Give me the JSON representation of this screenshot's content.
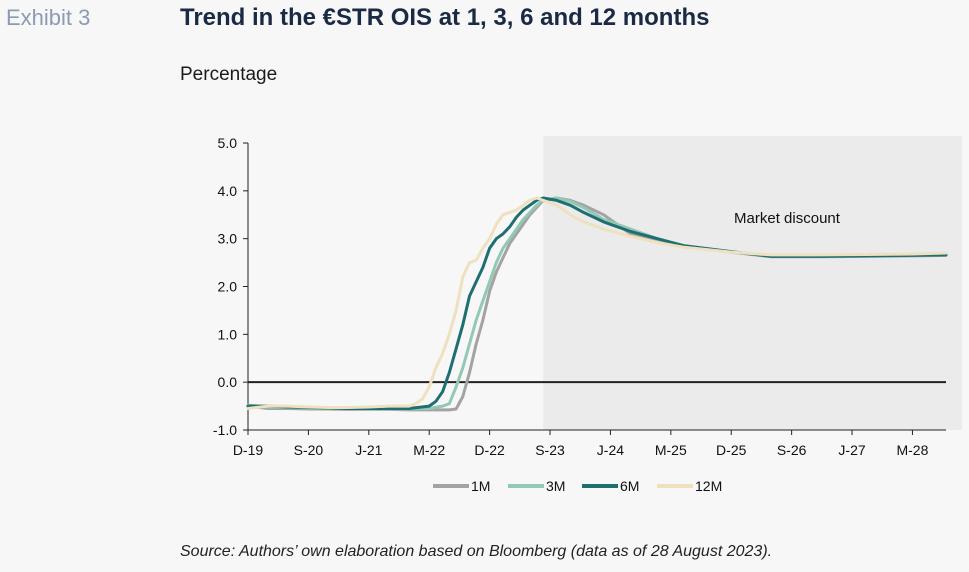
{
  "header": {
    "exhibit": "Exhibit 3",
    "title": "Trend in the €STR OIS at 1, 3, 6 and 12 months",
    "subtitle": "Percentage"
  },
  "footer": {
    "source": "Source: Authors’ own elaboration based on Bloomberg (data as of 28 August 2023)."
  },
  "chart_data": {
    "type": "line",
    "title": "Trend in the €STR OIS at 1, 3, 6 and 12 months",
    "ylabel": "Percentage",
    "xlabel": "",
    "ylim": [
      -1.0,
      5.0
    ],
    "yticks": [
      -1.0,
      0.0,
      1.0,
      2.0,
      3.0,
      4.0,
      5.0
    ],
    "ytick_labels": [
      "-1.0",
      "0.0",
      "1.0",
      "2.0",
      "3.0",
      "4.0",
      "5.0"
    ],
    "x_unit": "month",
    "xlim": [
      "2019-12",
      "2028-08"
    ],
    "xticks": [
      "2019-12",
      "2020-09",
      "2021-06",
      "2022-03",
      "2022-12",
      "2023-09",
      "2024-06",
      "2025-03",
      "2025-12",
      "2026-09",
      "2027-06",
      "2028-03"
    ],
    "xtick_labels": [
      "D-19",
      "S-20",
      "J-21",
      "M-22",
      "D-22",
      "S-23",
      "J-24",
      "M-25",
      "D-25",
      "S-26",
      "J-27",
      "M-28"
    ],
    "grid": false,
    "legend_position": "bottom",
    "shaded_region": {
      "x_start": "2023-08",
      "x_end": "2028-08",
      "label": "Market discount",
      "color": "#ebebeb"
    },
    "series": [
      {
        "name": "1M",
        "color": "#a3a3a3",
        "x": [
          "2019-12",
          "2020-03",
          "2020-06",
          "2020-09",
          "2020-12",
          "2021-03",
          "2021-06",
          "2021-09",
          "2021-12",
          "2022-03",
          "2022-05",
          "2022-06",
          "2022-07",
          "2022-08",
          "2022-09",
          "2022-10",
          "2022-11",
          "2022-12",
          "2023-01",
          "2023-02",
          "2023-03",
          "2023-04",
          "2023-05",
          "2023-06",
          "2023-07",
          "2023-08",
          "2023-10",
          "2023-12",
          "2024-02",
          "2024-05",
          "2024-09",
          "2025-01",
          "2025-05",
          "2025-12",
          "2026-06",
          "2027-01",
          "2027-08",
          "2028-03",
          "2028-08"
        ],
        "y": [
          -0.5,
          -0.55,
          -0.55,
          -0.56,
          -0.56,
          -0.57,
          -0.57,
          -0.57,
          -0.58,
          -0.58,
          -0.58,
          -0.58,
          -0.56,
          -0.3,
          0.2,
          0.8,
          1.3,
          1.9,
          2.3,
          2.6,
          2.9,
          3.1,
          3.3,
          3.5,
          3.65,
          3.8,
          3.85,
          3.8,
          3.7,
          3.5,
          3.1,
          2.95,
          2.85,
          2.72,
          2.62,
          2.62,
          2.63,
          2.64,
          2.65
        ]
      },
      {
        "name": "3M",
        "color": "#92c9b4",
        "x": [
          "2019-12",
          "2020-03",
          "2020-06",
          "2020-09",
          "2020-12",
          "2021-03",
          "2021-06",
          "2021-09",
          "2021-12",
          "2022-03",
          "2022-05",
          "2022-06",
          "2022-07",
          "2022-08",
          "2022-09",
          "2022-10",
          "2022-11",
          "2022-12",
          "2023-01",
          "2023-02",
          "2023-03",
          "2023-04",
          "2023-05",
          "2023-06",
          "2023-07",
          "2023-08",
          "2023-10",
          "2023-12",
          "2024-02",
          "2024-05",
          "2024-09",
          "2025-01",
          "2025-05",
          "2025-12",
          "2026-06",
          "2027-01",
          "2027-08",
          "2028-03",
          "2028-08"
        ],
        "y": [
          -0.48,
          -0.52,
          -0.53,
          -0.54,
          -0.55,
          -0.55,
          -0.56,
          -0.56,
          -0.56,
          -0.55,
          -0.5,
          -0.45,
          -0.1,
          0.3,
          0.8,
          1.3,
          1.7,
          2.1,
          2.5,
          2.8,
          3.0,
          3.2,
          3.4,
          3.55,
          3.7,
          3.8,
          3.85,
          3.78,
          3.65,
          3.4,
          3.2,
          3.0,
          2.85,
          2.72,
          2.63,
          2.63,
          2.64,
          2.65,
          2.66
        ]
      },
      {
        "name": "6M",
        "color": "#1f6e72",
        "x": [
          "2019-12",
          "2020-03",
          "2020-06",
          "2020-09",
          "2020-12",
          "2021-03",
          "2021-06",
          "2021-09",
          "2021-12",
          "2022-03",
          "2022-04",
          "2022-05",
          "2022-06",
          "2022-07",
          "2022-08",
          "2022-09",
          "2022-10",
          "2022-11",
          "2022-12",
          "2023-01",
          "2023-02",
          "2023-03",
          "2023-04",
          "2023-05",
          "2023-06",
          "2023-07",
          "2023-08",
          "2023-10",
          "2023-12",
          "2024-02",
          "2024-05",
          "2024-09",
          "2025-01",
          "2025-05",
          "2025-12",
          "2026-06",
          "2027-01",
          "2027-08",
          "2028-03",
          "2028-08"
        ],
        "y": [
          -0.5,
          -0.5,
          -0.52,
          -0.53,
          -0.54,
          -0.55,
          -0.55,
          -0.55,
          -0.55,
          -0.5,
          -0.4,
          -0.2,
          0.2,
          0.7,
          1.2,
          1.8,
          2.1,
          2.4,
          2.8,
          3.0,
          3.1,
          3.25,
          3.45,
          3.6,
          3.7,
          3.8,
          3.85,
          3.8,
          3.7,
          3.55,
          3.35,
          3.15,
          3.0,
          2.85,
          2.73,
          2.63,
          2.63,
          2.64,
          2.65,
          2.66
        ]
      },
      {
        "name": "12M",
        "color": "#efe1bf",
        "x": [
          "2019-12",
          "2020-03",
          "2020-06",
          "2020-09",
          "2020-12",
          "2021-03",
          "2021-06",
          "2021-09",
          "2021-12",
          "2022-01",
          "2022-02",
          "2022-03",
          "2022-04",
          "2022-05",
          "2022-06",
          "2022-07",
          "2022-08",
          "2022-09",
          "2022-10",
          "2022-11",
          "2022-12",
          "2023-01",
          "2023-02",
          "2023-03",
          "2023-04",
          "2023-05",
          "2023-06",
          "2023-07",
          "2023-08",
          "2023-10",
          "2023-12",
          "2024-02",
          "2024-05",
          "2024-09",
          "2025-01",
          "2025-05",
          "2025-12",
          "2026-06",
          "2027-01",
          "2027-08",
          "2028-03",
          "2028-08"
        ],
        "y": [
          -0.55,
          -0.5,
          -0.5,
          -0.52,
          -0.53,
          -0.53,
          -0.52,
          -0.5,
          -0.5,
          -0.45,
          -0.35,
          -0.1,
          0.3,
          0.6,
          1.0,
          1.5,
          2.2,
          2.5,
          2.55,
          2.8,
          3.0,
          3.3,
          3.5,
          3.55,
          3.6,
          3.7,
          3.8,
          3.85,
          3.8,
          3.7,
          3.5,
          3.35,
          3.2,
          3.05,
          2.92,
          2.82,
          2.72,
          2.66,
          2.66,
          2.67,
          2.68,
          2.7
        ]
      }
    ]
  }
}
